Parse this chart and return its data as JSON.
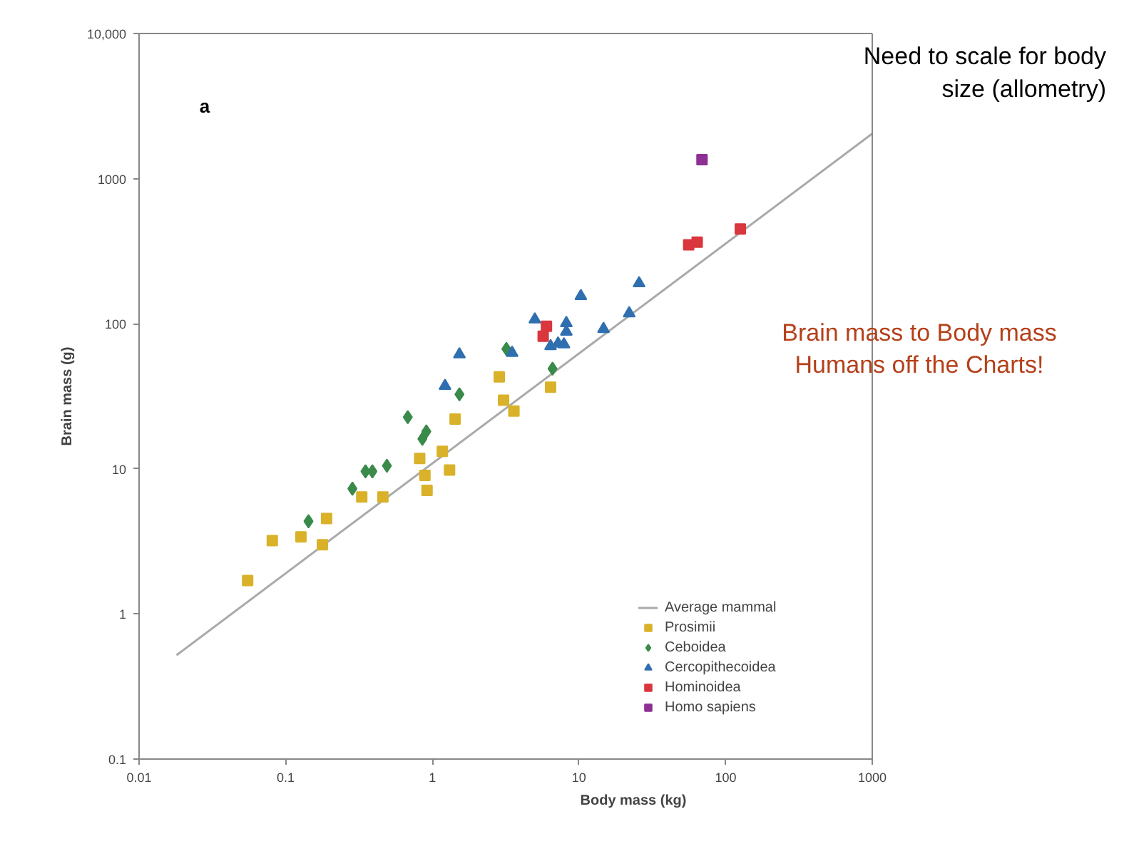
{
  "chart_data": {
    "type": "scatter",
    "xlabel": "Body mass (kg)",
    "ylabel": "Brain mass (g)",
    "log": "xy",
    "xlim": [
      0.01,
      1000
    ],
    "ylim": [
      0.1,
      10000
    ],
    "xticks": [
      0.01,
      0.1,
      1,
      10,
      100,
      1000
    ],
    "yticks": [
      0.1,
      1,
      10,
      100,
      1000,
      {
        "value": 10000,
        "label": "10,000"
      }
    ],
    "grid": false,
    "legend": "bottom right",
    "annotations": [
      "a",
      "Need to scale for body\nsize (allometry)",
      "Brain mass to Body mass\nHumans off the Charts!"
    ],
    "series": [
      {
        "name": "Average mammal",
        "type": "line",
        "color": "#aaaaaa",
        "marker": "none",
        "x": [
          0.018,
          1000
        ],
        "values": [
          0.52,
          2040
        ]
      },
      {
        "name": "Prosimii",
        "color": "#d9b22a",
        "marker": "square",
        "x": [
          0.055,
          0.081,
          0.127,
          0.178,
          0.19,
          0.33,
          0.46,
          0.82,
          0.89,
          0.92,
          1.17,
          1.31,
          1.43,
          2.86,
          3.06,
          3.6,
          6.4
        ],
        "values": [
          1.7,
          3.2,
          3.4,
          3.0,
          4.55,
          6.4,
          6.4,
          11.8,
          9.0,
          7.1,
          13.2,
          9.8,
          22,
          43,
          29.7,
          25,
          36.5
        ]
      },
      {
        "name": "Ceboidea",
        "color": "#3a8a4a",
        "marker": "diamond",
        "x": [
          0.143,
          0.285,
          0.35,
          0.39,
          0.49,
          0.68,
          0.855,
          0.91,
          1.53,
          3.2,
          6.6
        ],
        "values": [
          4.35,
          7.3,
          9.6,
          9.6,
          10.5,
          22.7,
          16.1,
          18.1,
          32.6,
          67,
          49
        ]
      },
      {
        "name": "Cercopithecoidea",
        "color": "#2f6fb0",
        "marker": "triangle",
        "x": [
          1.22,
          1.53,
          3.5,
          5.0,
          6.4,
          7.2,
          7.9,
          8.2,
          8.2,
          10.3,
          14.7,
          22,
          25.7
        ],
        "values": [
          37.3,
          61.5,
          63,
          107,
          70,
          73,
          72,
          88,
          101,
          155,
          92,
          118,
          190
        ]
      },
      {
        "name": "Hominoidea",
        "color": "#d9363e",
        "marker": "square",
        "x": [
          5.7,
          6.0,
          56,
          64,
          126
        ],
        "values": [
          82,
          96,
          350,
          365,
          450
        ]
      },
      {
        "name": "Homo sapiens",
        "color": "#8e2f94",
        "marker": "square",
        "x": [
          69
        ],
        "values": [
          1350
        ]
      }
    ]
  }
}
